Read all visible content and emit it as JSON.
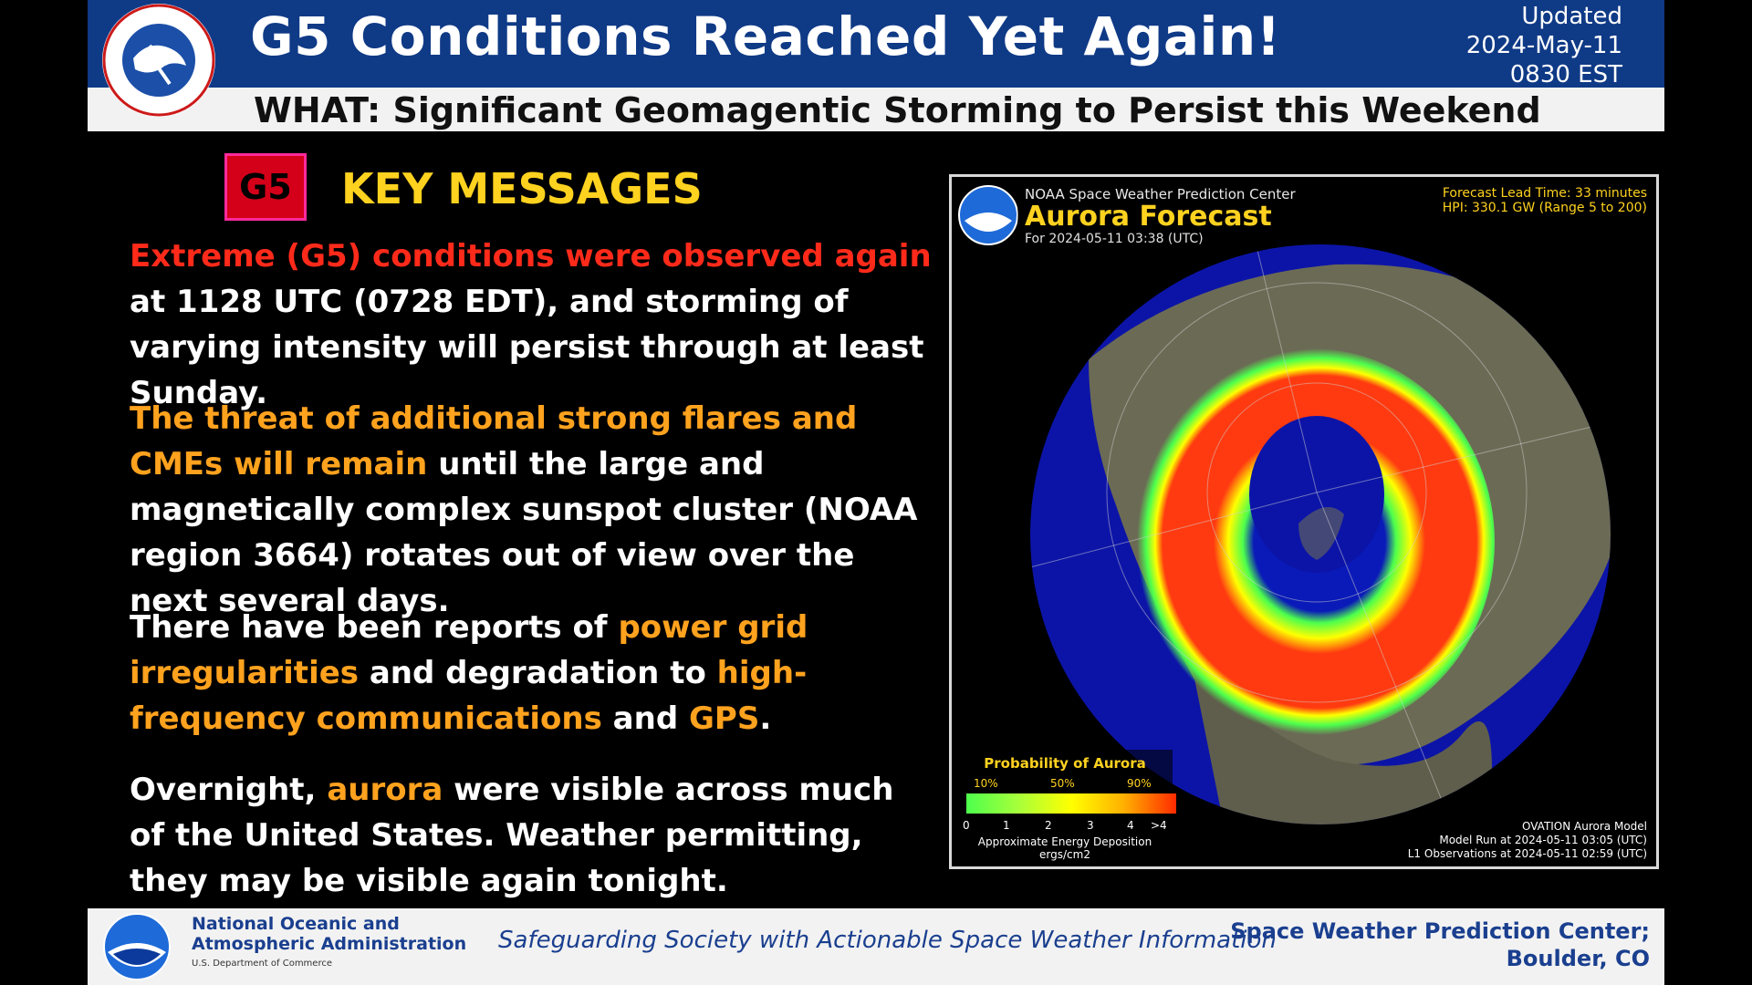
{
  "header": {
    "title": "G5 Conditions Reached Yet Again!",
    "updated_label": "Updated",
    "updated_date": "2024-May-11",
    "updated_time": "0830 EST",
    "what": "WHAT: Significant Geomagentic Storming to Persist this Weekend",
    "logo_text": "NATIONAL WEATHER SERVICE"
  },
  "key_messages": {
    "badge": "G5",
    "title": "KEY MESSAGES",
    "p1": {
      "a": "Extreme (G5) conditions were observed again",
      "b": " at 1128 UTC (0728 EDT), and storming of varying intensity will persist through at least Sunday."
    },
    "p2": {
      "a": "The threat of additional strong flares and CMEs will remain",
      "b": " until the large and magnetically complex sunspot cluster (NOAA region 3664) rotates out of view over the next several days."
    },
    "p3": {
      "a": "There have been reports of ",
      "b": "power grid irregularities",
      "c": " and degradation to ",
      "d": "high-frequency communications",
      "e": " and ",
      "f": "GPS",
      "g": "."
    },
    "p4": {
      "a": "Overnight, ",
      "b": "aurora",
      "c": " were visible across much of the United States. Weather permitting, they may be visible again tonight."
    }
  },
  "aurora_map": {
    "center": "NOAA Space Weather Prediction Center",
    "title": "Aurora Forecast",
    "date": "For 2024-05-11 03:38 (UTC)",
    "lead_time": "Forecast Lead Time:  33 minutes",
    "hpi": "HPI: 330.1 GW (Range 5 to 200)",
    "legend_title": "Probability of Aurora",
    "prob_ticks": [
      "10%",
      "50%",
      "90%"
    ],
    "energy_ticks": [
      "0",
      "1",
      "2",
      "3",
      "4",
      ">4"
    ],
    "energy_label": "Approximate Energy Deposition",
    "energy_unit": "ergs/cm2",
    "model": "OVATION Aurora Model",
    "model_run": "Model Run at 2024-05-11 03:05 (UTC)",
    "l1_obs": "L1 Observations at 2024-05-11 02:59 (UTC)",
    "logo_text": "NOAA"
  },
  "footer": {
    "noaa_line1": "National Oceanic and",
    "noaa_line2": "Atmospheric Administration",
    "noaa_dept": "U.S. Department of Commerce",
    "tagline": "Safeguarding Society with Actionable Space Weather Information",
    "swpc_line1": "Space Weather Prediction Center;",
    "swpc_line2": "Boulder, CO",
    "logo_text": "NOAA"
  },
  "colors": {
    "header_blue": "#0f3a86",
    "extreme_red": "#ff2a1a",
    "highlight_orange": "#ffa21e",
    "title_yellow": "#ffd21f"
  }
}
